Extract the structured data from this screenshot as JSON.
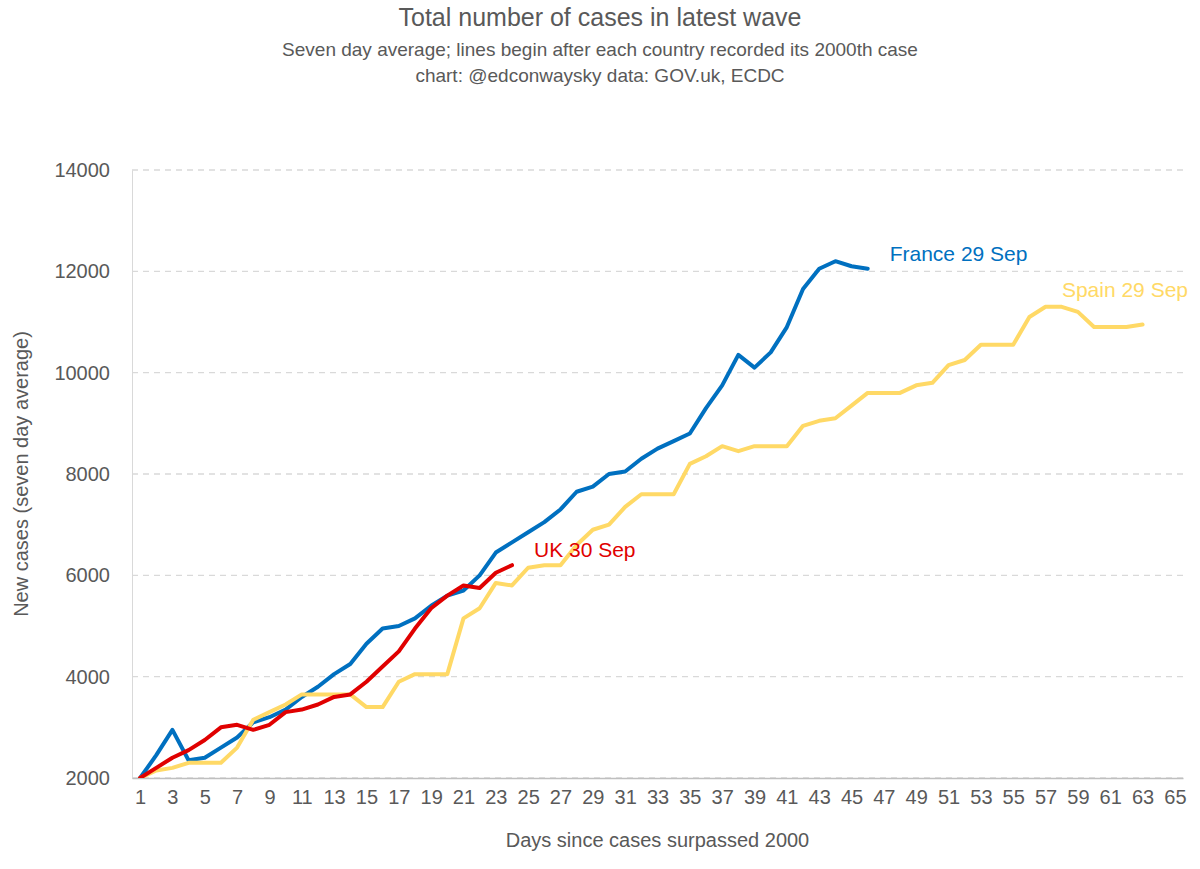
{
  "chart_data": {
    "type": "line",
    "title": "Total number of cases in latest wave",
    "subtitle": [
      "Seven day average; lines begin after each country recorded its 2000th case",
      "chart: @edconwaysky data: GOV.uk, ECDC"
    ],
    "x_label": "Days since cases surpassed 2000",
    "y_label": "New cases (seven day average)",
    "x": [
      1,
      2,
      3,
      4,
      5,
      6,
      7,
      8,
      9,
      10,
      11,
      12,
      13,
      14,
      15,
      16,
      17,
      18,
      19,
      20,
      21,
      22,
      23,
      24,
      25,
      26,
      27,
      28,
      29,
      30,
      31,
      32,
      33,
      34,
      35,
      36,
      37,
      38,
      39,
      40,
      41,
      42,
      43,
      44,
      45,
      46,
      47,
      48,
      49,
      50,
      51,
      52,
      53,
      54,
      55,
      56,
      57,
      58,
      59,
      60,
      61,
      62,
      63,
      64,
      65
    ],
    "xlim": [
      0.5,
      65.5
    ],
    "xticks": [
      1,
      3,
      5,
      7,
      9,
      11,
      13,
      15,
      17,
      19,
      21,
      23,
      25,
      27,
      29,
      31,
      33,
      35,
      37,
      39,
      41,
      43,
      45,
      47,
      49,
      51,
      53,
      55,
      57,
      59,
      61,
      63,
      65
    ],
    "ylim": [
      2000,
      14000
    ],
    "yticks": [
      2000,
      4000,
      6000,
      8000,
      10000,
      12000,
      14000
    ],
    "grid": true,
    "series": [
      {
        "name": "France 29 Sep",
        "color": "#0070c0",
        "values": [
          2000,
          2450,
          2950,
          2350,
          2400,
          2600,
          2800,
          3100,
          3200,
          3350,
          3600,
          3800,
          4050,
          4250,
          4650,
          4950,
          5000,
          5150,
          5400,
          5600,
          5700,
          6000,
          6450,
          6650,
          6850,
          7050,
          7300,
          7650,
          7750,
          8000,
          8050,
          8300,
          8500,
          8650,
          8800,
          9300,
          9750,
          10350,
          10100,
          10400,
          10900,
          11650,
          12050,
          12200,
          12100,
          12050,
          null,
          null,
          null,
          null,
          null,
          null,
          null,
          null,
          null,
          null,
          null,
          null,
          null,
          null,
          null,
          null,
          null,
          null,
          null
        ]
      },
      {
        "name": "Spain 29 Sep",
        "color": "#ffd966",
        "values": [
          2000,
          2150,
          2200,
          2300,
          2300,
          2300,
          2600,
          3150,
          3300,
          3450,
          3650,
          3650,
          3650,
          3650,
          3400,
          3400,
          3900,
          4050,
          4050,
          4050,
          5150,
          5350,
          5850,
          5800,
          6150,
          6200,
          6200,
          6600,
          6900,
          7000,
          7350,
          7600,
          7600,
          7600,
          8200,
          8350,
          8550,
          8450,
          8550,
          8550,
          8550,
          8950,
          9050,
          9100,
          9350,
          9600,
          9600,
          9600,
          9750,
          9800,
          10150,
          10250,
          10550,
          10550,
          10550,
          11100,
          11300,
          11300,
          11200,
          10900,
          10900,
          10900,
          10950,
          null,
          null
        ]
      },
      {
        "name": "UK 30 Sep",
        "color": "#e00000",
        "values": [
          2000,
          2200,
          2400,
          2550,
          2750,
          3000,
          3050,
          2950,
          3050,
          3300,
          3350,
          3450,
          3600,
          3650,
          3900,
          4200,
          4500,
          4950,
          5350,
          5600,
          5800,
          5750,
          6050,
          6200,
          null,
          null,
          null,
          null,
          null,
          null,
          null,
          null,
          null,
          null,
          null,
          null,
          null,
          null,
          null,
          null,
          null,
          null,
          null,
          null,
          null,
          null,
          null,
          null,
          null,
          null,
          null,
          null,
          null,
          null,
          null,
          null,
          null,
          null,
          null,
          null,
          null,
          null,
          null,
          null,
          null
        ]
      }
    ]
  }
}
